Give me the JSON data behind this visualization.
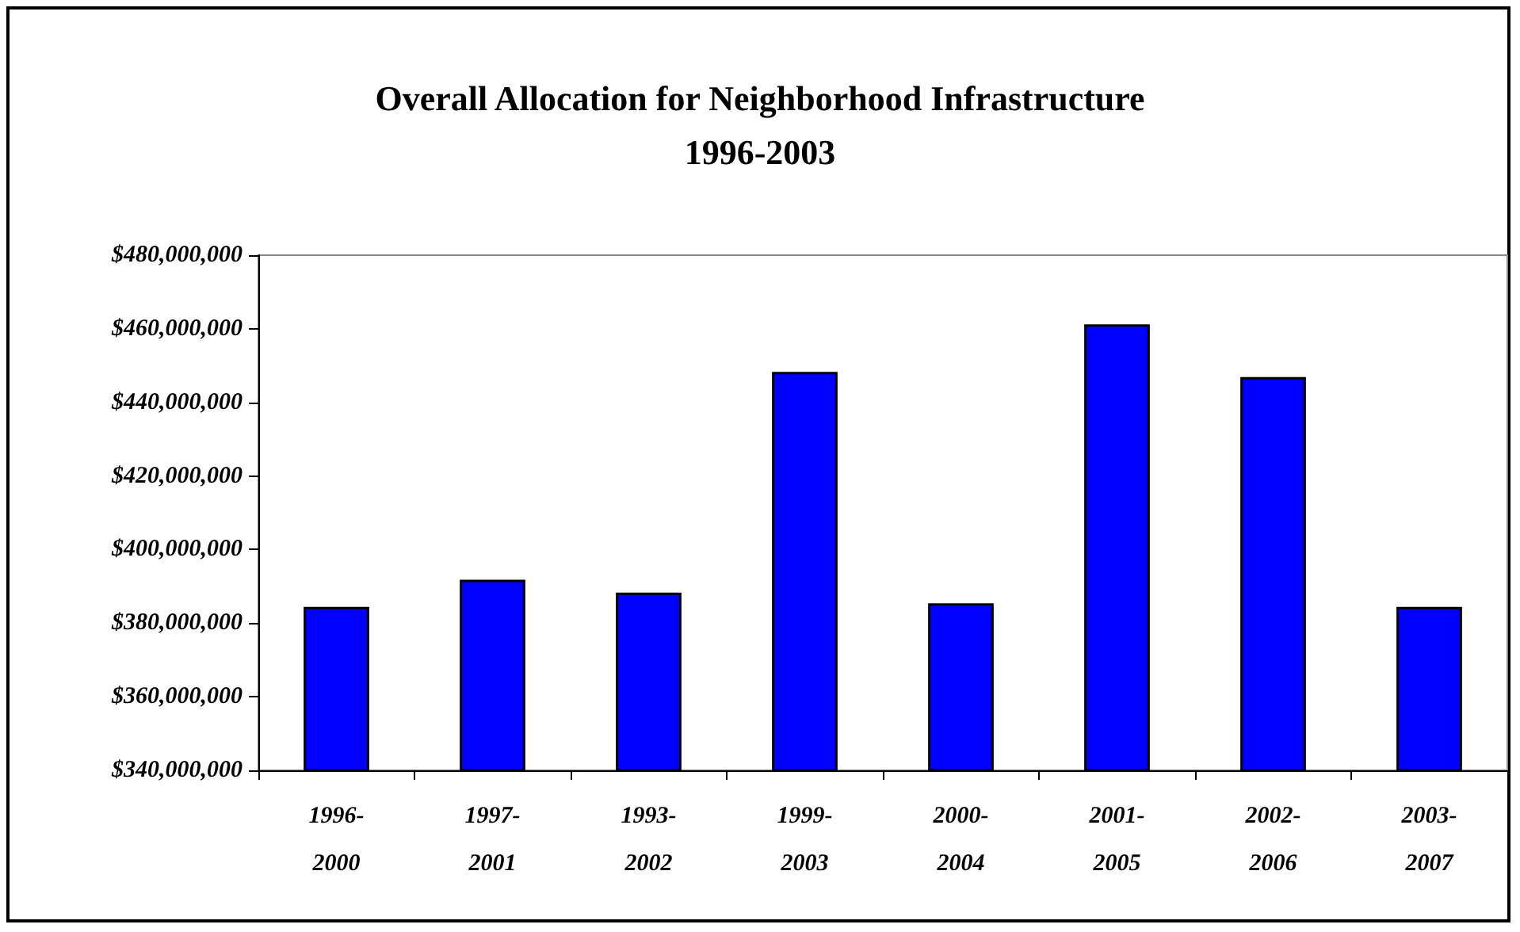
{
  "chart_data": {
    "type": "bar",
    "title": "Overall Allocation for Neighborhood Infrastructure\n1996-2003",
    "categories": [
      "1996-2000",
      "1997-2001",
      "1993-2002",
      "1999-2003",
      "2000-2004",
      "2001-2005",
      "2002-2006",
      "2003-2007"
    ],
    "values": [
      384400000,
      391800000,
      388300000,
      448300000,
      385400000,
      461200000,
      446900000,
      384400000
    ],
    "color": "#0000ff",
    "ylim": [
      340000000,
      480000000
    ],
    "yticks": [
      {
        "value": 340000000,
        "label": "$340,000,000"
      },
      {
        "value": 360000000,
        "label": "$360,000,000"
      },
      {
        "value": 380000000,
        "label": "$380,000,000"
      },
      {
        "value": 400000000,
        "label": "$400,000,000"
      },
      {
        "value": 420000000,
        "label": "$420,000,000"
      },
      {
        "value": 440000000,
        "label": "$440,000,000"
      },
      {
        "value": 460000000,
        "label": "$460,000,000"
      },
      {
        "value": 480000000,
        "label": "$480,000,000"
      }
    ],
    "grid": false
  }
}
